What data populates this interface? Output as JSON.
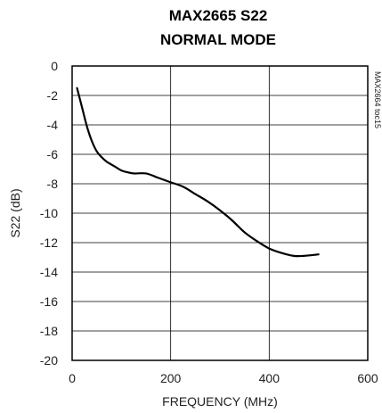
{
  "chart_data": {
    "type": "line",
    "title_line1": "MAX2665 S22",
    "title_line2": "NORMAL MODE",
    "xlabel": "FREQUENCY (MHz)",
    "ylabel": "S22 (dB)",
    "figure_id": "MAX2664 toc15",
    "xlim": [
      0,
      600
    ],
    "ylim": [
      -20,
      0
    ],
    "x_ticks": [
      0,
      200,
      400,
      600
    ],
    "y_ticks": [
      0,
      -2,
      -4,
      -6,
      -8,
      -10,
      -12,
      -14,
      -16,
      -18,
      -20
    ],
    "grid": true,
    "series": [
      {
        "x": [
          10,
          20,
          30,
          40,
          50,
          60,
          70,
          80,
          90,
          100,
          110,
          125,
          150,
          175,
          200,
          225,
          250,
          275,
          300,
          325,
          350,
          375,
          400,
          425,
          450,
          470,
          500
        ],
        "y": [
          -1.5,
          -2.8,
          -4.1,
          -5.1,
          -5.8,
          -6.2,
          -6.5,
          -6.7,
          -6.9,
          -7.1,
          -7.2,
          -7.3,
          -7.3,
          -7.6,
          -7.9,
          -8.2,
          -8.7,
          -9.2,
          -9.8,
          -10.5,
          -11.3,
          -11.9,
          -12.4,
          -12.7,
          -12.9,
          -12.9,
          -12.8
        ]
      }
    ]
  }
}
